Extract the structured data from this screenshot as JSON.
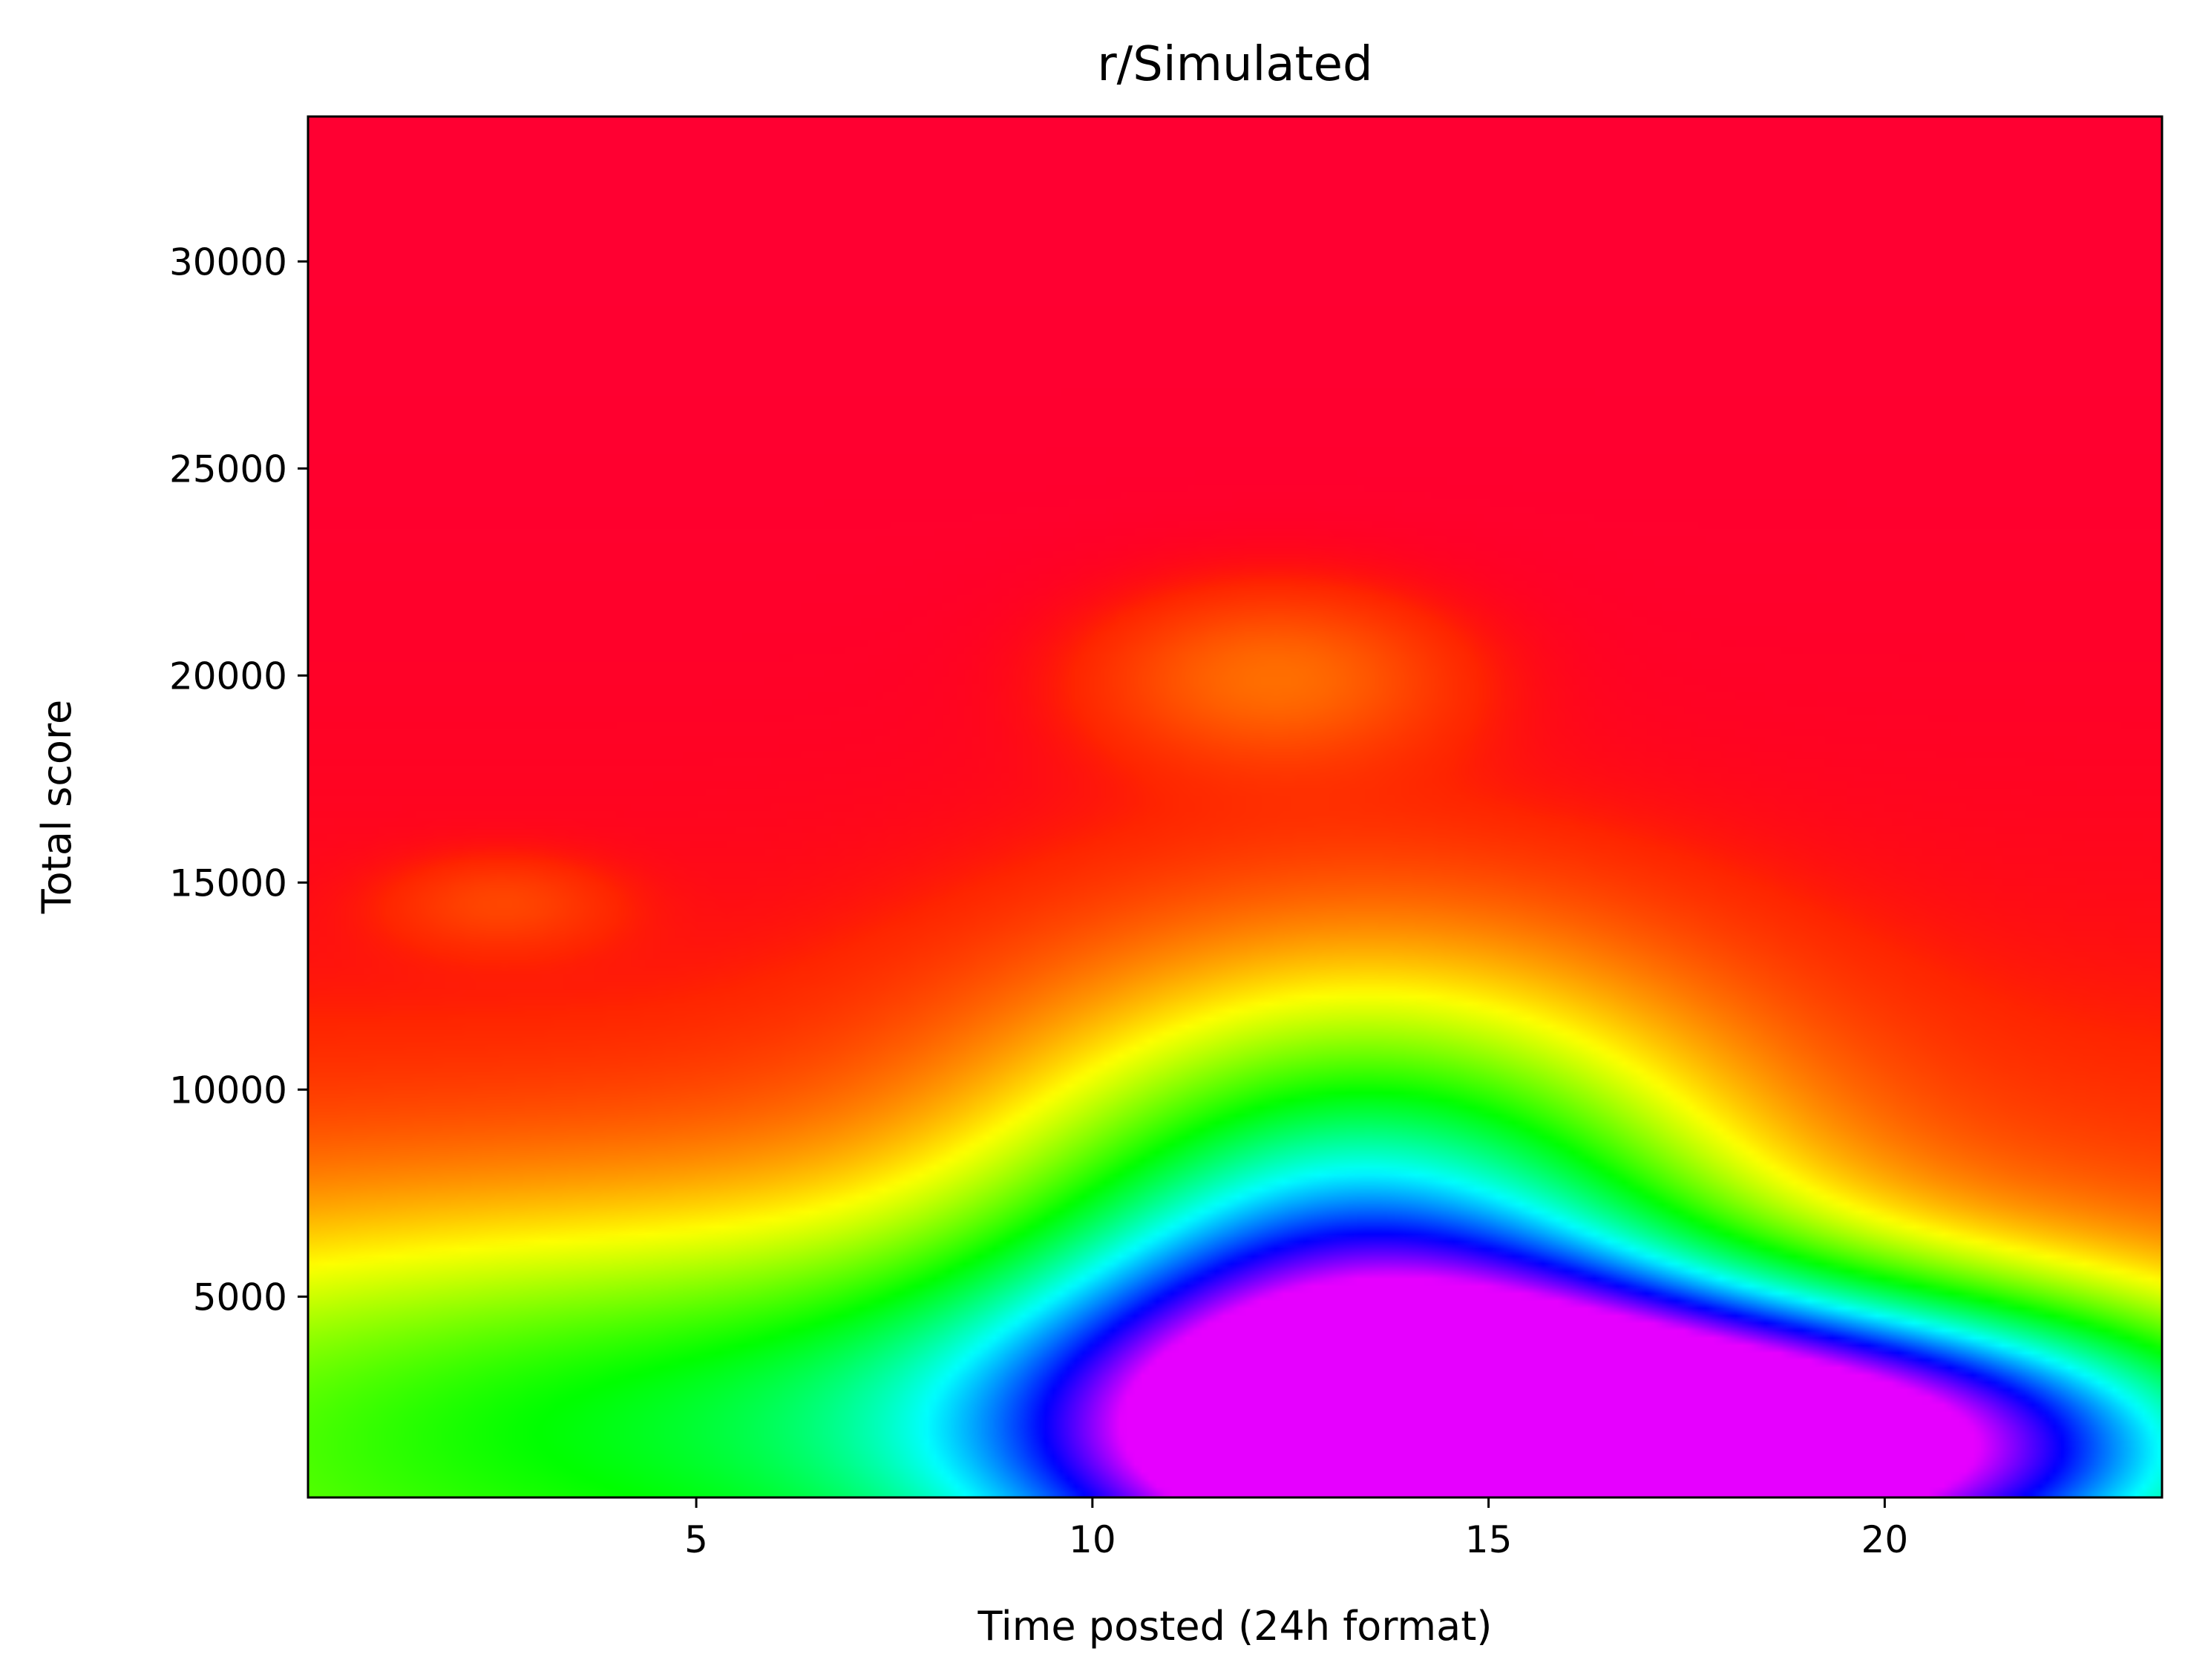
{
  "chart_data": {
    "type": "heatmap",
    "title": "r/Simulated",
    "xlabel": "Time posted (24h format)",
    "ylabel": "Total score",
    "xlim": [
      0.1,
      23.5
    ],
    "ylim": [
      150,
      33500
    ],
    "xticks": [
      5,
      10,
      15,
      20
    ],
    "yticks": [
      5000,
      10000,
      15000,
      20000,
      25000,
      30000
    ],
    "colormap": "gist_rainbow",
    "colormap_stops": [
      "#ff0000",
      "#ffff00",
      "#00ff00",
      "#00ffff",
      "#0000ff",
      "#ff00ff"
    ],
    "background_color": "#ff0033",
    "grid": false,
    "legend": "none",
    "density_peaks": [
      {
        "x": 15.0,
        "y": 1200,
        "intensity": 1.0
      },
      {
        "x": 13.5,
        "y": 6000,
        "intensity": 0.55
      },
      {
        "x": 6.0,
        "y": 2500,
        "intensity": 0.3
      },
      {
        "x": 20.5,
        "y": 1500,
        "intensity": 0.6
      },
      {
        "x": 12.3,
        "y": 20000,
        "intensity": 0.08
      },
      {
        "x": 2.5,
        "y": 14500,
        "intensity": 0.04
      }
    ]
  }
}
